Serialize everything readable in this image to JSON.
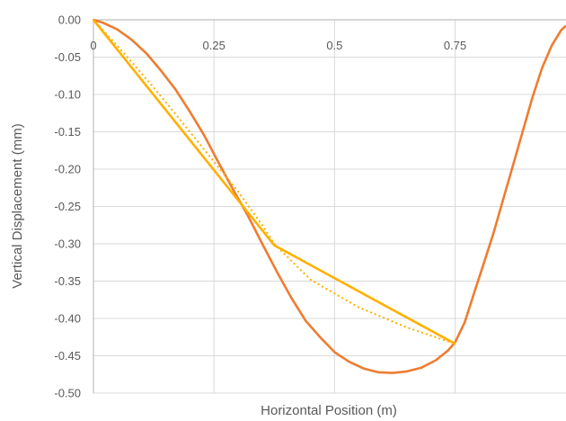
{
  "chart_data": {
    "type": "line",
    "title": "",
    "xlabel": "Horizontal Position (m)",
    "ylabel": "Vertical Displacement (mm)",
    "xlim": [
      0,
      0.98
    ],
    "ylim": [
      -0.5,
      0
    ],
    "x_ticks": [
      {
        "value": 0,
        "label": "0"
      },
      {
        "value": 0.25,
        "label": "0.25"
      },
      {
        "value": 0.5,
        "label": "0.5"
      },
      {
        "value": 0.75,
        "label": "0.75"
      }
    ],
    "y_ticks": [
      {
        "value": 0,
        "label": "0.00"
      },
      {
        "value": -0.05,
        "label": "-0.05"
      },
      {
        "value": -0.1,
        "label": "-0.10"
      },
      {
        "value": -0.15,
        "label": "-0.15"
      },
      {
        "value": -0.2,
        "label": "-0.20"
      },
      {
        "value": -0.25,
        "label": "-0.25"
      },
      {
        "value": -0.3,
        "label": "-0.30"
      },
      {
        "value": -0.35,
        "label": "-0.35"
      },
      {
        "value": -0.4,
        "label": "-0.40"
      },
      {
        "value": -0.45,
        "label": "-0.45"
      },
      {
        "value": -0.5,
        "label": "-0.50"
      }
    ],
    "grid": true,
    "legend": "none",
    "series": [
      {
        "color": "#ED7D31",
        "dash": "solid",
        "points": [
          [
            0,
            0
          ],
          [
            0.02,
            -0.004
          ],
          [
            0.05,
            -0.013
          ],
          [
            0.08,
            -0.027
          ],
          [
            0.11,
            -0.045
          ],
          [
            0.14,
            -0.068
          ],
          [
            0.17,
            -0.093
          ],
          [
            0.2,
            -0.123
          ],
          [
            0.23,
            -0.155
          ],
          [
            0.26,
            -0.192
          ],
          [
            0.29,
            -0.228
          ],
          [
            0.32,
            -0.262
          ],
          [
            0.35,
            -0.3
          ],
          [
            0.38,
            -0.337
          ],
          [
            0.41,
            -0.372
          ],
          [
            0.44,
            -0.403
          ],
          [
            0.47,
            -0.425
          ],
          [
            0.5,
            -0.445
          ],
          [
            0.53,
            -0.458
          ],
          [
            0.56,
            -0.467
          ],
          [
            0.59,
            -0.472
          ],
          [
            0.62,
            -0.473
          ],
          [
            0.65,
            -0.471
          ],
          [
            0.68,
            -0.466
          ],
          [
            0.71,
            -0.456
          ],
          [
            0.735,
            -0.443
          ],
          [
            0.75,
            -0.432
          ],
          [
            0.77,
            -0.405
          ],
          [
            0.79,
            -0.365
          ],
          [
            0.81,
            -0.325
          ],
          [
            0.83,
            -0.285
          ],
          [
            0.85,
            -0.24
          ],
          [
            0.87,
            -0.195
          ],
          [
            0.89,
            -0.15
          ],
          [
            0.91,
            -0.105
          ],
          [
            0.93,
            -0.065
          ],
          [
            0.95,
            -0.035
          ],
          [
            0.97,
            -0.014
          ],
          [
            0.98,
            -0.008
          ]
        ]
      },
      {
        "color": "#FFB000",
        "dash": "solid",
        "points": [
          [
            0,
            0
          ],
          [
            0.375,
            -0.302
          ],
          [
            0.75,
            -0.434
          ]
        ]
      },
      {
        "color": "#FFB000",
        "dash": "dotted",
        "points": [
          [
            0,
            0
          ],
          [
            0.05,
            -0.035
          ],
          [
            0.1,
            -0.072
          ],
          [
            0.15,
            -0.11
          ],
          [
            0.2,
            -0.15
          ],
          [
            0.25,
            -0.19
          ],
          [
            0.3,
            -0.23
          ],
          [
            0.35,
            -0.275
          ],
          [
            0.375,
            -0.3
          ],
          [
            0.45,
            -0.348
          ],
          [
            0.55,
            -0.385
          ],
          [
            0.65,
            -0.412
          ],
          [
            0.75,
            -0.434
          ]
        ]
      }
    ]
  }
}
